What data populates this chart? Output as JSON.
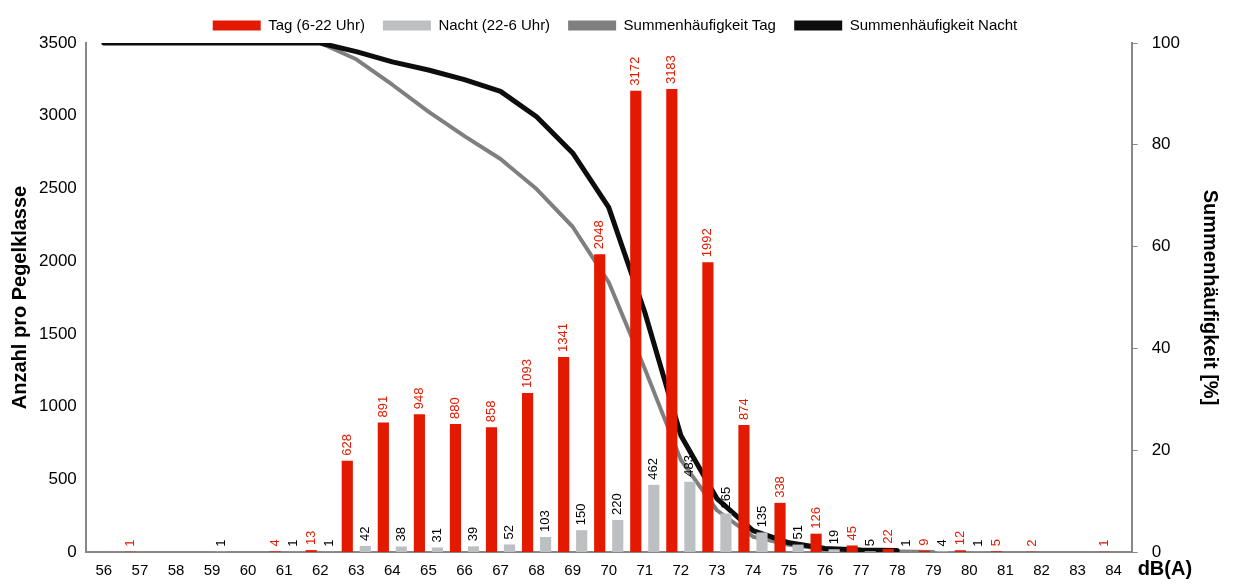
{
  "chart_data": {
    "type": "bar",
    "xlabel": "dB(A)",
    "ylabel": "Anzahl pro Pegelklasse",
    "y2label": "Summenhäufigkeit [%]",
    "categories": [
      "56",
      "57",
      "58",
      "59",
      "60",
      "61",
      "62",
      "63",
      "64",
      "65",
      "66",
      "67",
      "68",
      "69",
      "70",
      "71",
      "72",
      "73",
      "74",
      "75",
      "76",
      "77",
      "78",
      "79",
      "80",
      "81",
      "82",
      "83",
      "84"
    ],
    "series": [
      {
        "name": "Tag (6-22 Uhr)",
        "color": "#e31a00",
        "values": [
          null,
          1,
          null,
          null,
          null,
          4,
          13,
          628,
          891,
          948,
          880,
          858,
          1093,
          1341,
          2048,
          3172,
          3183,
          1992,
          874,
          338,
          126,
          45,
          22,
          9,
          12,
          5,
          2,
          null,
          1
        ],
        "value_labels": [
          null,
          "1",
          null,
          null,
          null,
          "4",
          "13",
          "628",
          "891",
          "948",
          "880",
          "858",
          "1093",
          "1341",
          "2048",
          "3172",
          "3183",
          "1992",
          "874",
          "338",
          "126",
          "45",
          "22",
          "9",
          "12",
          "5",
          "2",
          null,
          "1"
        ]
      },
      {
        "name": "Nacht (22-6 Uhr)",
        "color": "#bcc0c2",
        "values": [
          null,
          null,
          null,
          1,
          null,
          1,
          1,
          42,
          38,
          31,
          39,
          52,
          103,
          150,
          220,
          462,
          483,
          265,
          135,
          51,
          19,
          5,
          1,
          4,
          1,
          null,
          null,
          null,
          null
        ],
        "value_labels": [
          null,
          null,
          null,
          "1",
          null,
          "1",
          "1",
          "42",
          "38",
          "31",
          "39",
          "52",
          "103",
          "150",
          "220",
          "462",
          "483",
          "265",
          "135",
          "51",
          "19",
          "5",
          "1",
          "4",
          "1",
          null,
          null,
          null,
          null
        ]
      },
      {
        "name": "Summenhäufigkeit Tag",
        "type": "line",
        "axis": "y2",
        "color": "#7f7f7f",
        "values": [
          100,
          100,
          100,
          100,
          100,
          100,
          100,
          96.8,
          91.8,
          86.5,
          81.7,
          77.2,
          71.3,
          63.9,
          53,
          36,
          18.1,
          8.2,
          3,
          1.4,
          0.6,
          0.2,
          0.1,
          0,
          null,
          null,
          null,
          null,
          null
        ]
      },
      {
        "name": "Summenhäufigkeit Nacht",
        "type": "line",
        "axis": "y2",
        "color": "#0d0d0d",
        "values": [
          100,
          100,
          100,
          100,
          100,
          100,
          100,
          98.3,
          96.3,
          94.7,
          92.8,
          90.5,
          85.5,
          78.4,
          67.7,
          47.1,
          22.9,
          10.5,
          4.2,
          1.8,
          0.7,
          0.4,
          0.3,
          null,
          null,
          null,
          null,
          null,
          null
        ]
      }
    ],
    "ylim": [
      0,
      3500
    ],
    "yticks": [
      0,
      500,
      1000,
      1500,
      2000,
      2500,
      3000,
      3500
    ],
    "y2lim": [
      0,
      100
    ],
    "y2ticks": [
      0,
      20,
      40,
      60,
      80,
      100
    ],
    "grid": false,
    "legend": "top",
    "marker": "none",
    "line_style": "solid"
  }
}
